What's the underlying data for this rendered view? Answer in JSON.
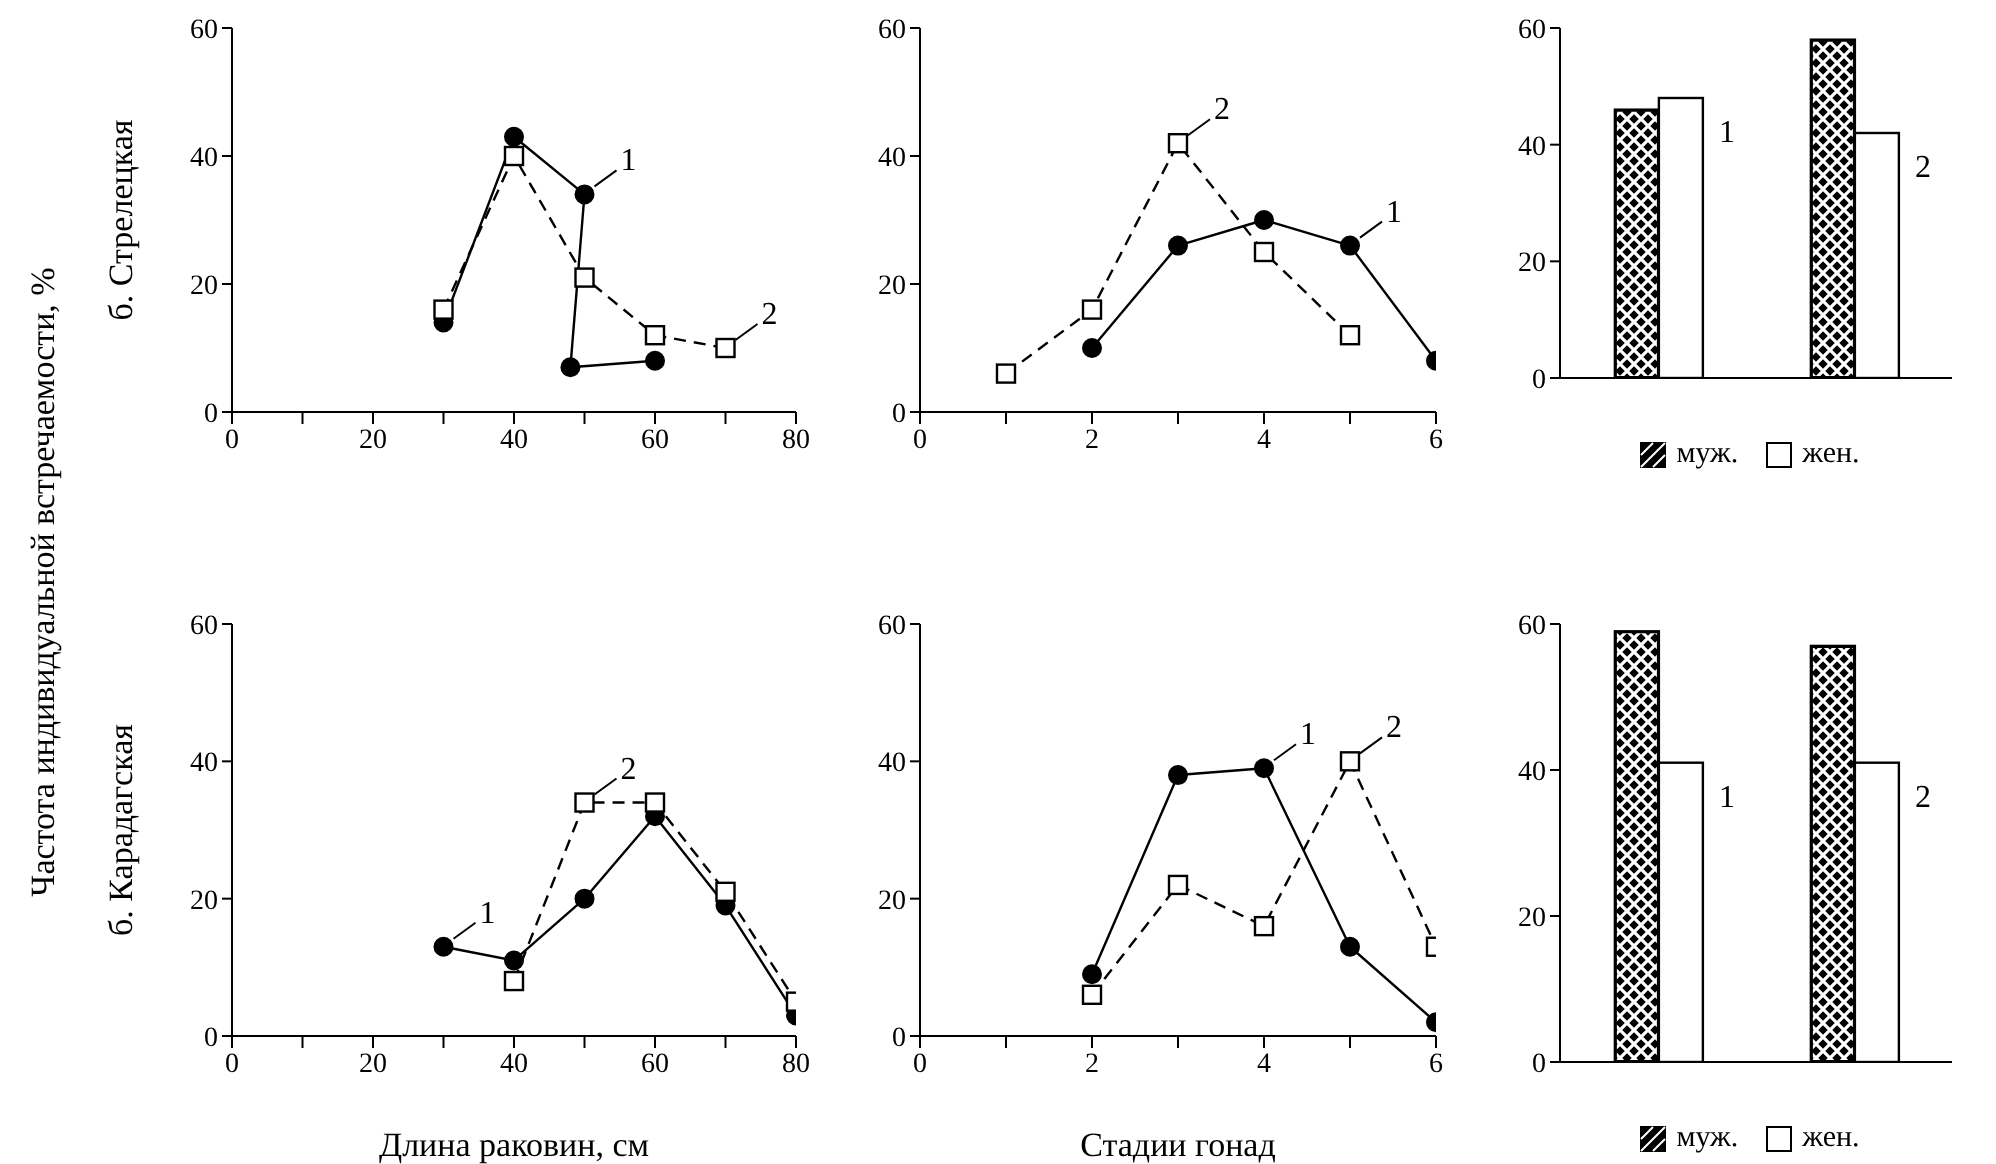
{
  "chart_data": [
    {
      "type": "line",
      "ylabel": "б. Стрелецкая",
      "annotations": [
        "Частота индивидуальной встречаемости, %",
        {
          "text": "1",
          "x": 50,
          "y": 34
        },
        {
          "text": "2",
          "x": 70,
          "y": 10
        }
      ],
      "xlim": [
        0,
        80
      ],
      "xticks": [
        0,
        {
          "value": 10,
          "label": null
        },
        20,
        {
          "value": 30,
          "label": null
        },
        40,
        {
          "value": 50,
          "label": null
        },
        60,
        {
          "value": 70,
          "label": null
        },
        80
      ],
      "ylim": [
        0,
        60
      ],
      "yticks": [
        0,
        20,
        40,
        60
      ],
      "series": [
        {
          "color": "#000000",
          "marker": "circle",
          "line_style": "solid",
          "x": [
            30,
            40,
            50,
            48,
            60
          ],
          "values": [
            14,
            43,
            34,
            7,
            8
          ]
        },
        {
          "color": "#000000",
          "marker": "square",
          "line_style": "dashed",
          "x": [
            30,
            40,
            50,
            60,
            70
          ],
          "values": [
            16,
            40,
            21,
            12,
            10
          ]
        }
      ]
    },
    {
      "type": "line",
      "annotations": [
        {
          "text": "1",
          "x": 5,
          "y": 26
        },
        {
          "text": "2",
          "x": 3,
          "y": 42
        }
      ],
      "xlim": [
        0,
        6
      ],
      "xticks": [
        0,
        {
          "value": 1,
          "label": null
        },
        2,
        {
          "value": 3,
          "label": null
        },
        4,
        {
          "value": 5,
          "label": null
        },
        6
      ],
      "ylim": [
        0,
        60
      ],
      "yticks": [
        0,
        20,
        40,
        60
      ],
      "series": [
        {
          "color": "#000000",
          "marker": "circle",
          "line_style": "solid",
          "x": [
            2,
            3,
            4,
            5,
            6
          ],
          "values": [
            10,
            26,
            30,
            26,
            8
          ]
        },
        {
          "color": "#000000",
          "marker": "square",
          "line_style": "dashed",
          "x": [
            1,
            2,
            3,
            4,
            5
          ],
          "values": [
            6,
            16,
            42,
            25,
            12
          ]
        }
      ]
    },
    {
      "type": "bar",
      "categories": [
        "1",
        "2"
      ],
      "ylim": [
        0,
        60
      ],
      "yticks": [
        0,
        20,
        40,
        60
      ],
      "tick_labels": "y",
      "legend": "bottom",
      "series": [
        {
          "name": "муж.",
          "color": "#000000",
          "values": [
            46,
            58
          ]
        },
        {
          "name": "жен.",
          "color": "#ffffff",
          "values": [
            48,
            42
          ]
        }
      ]
    },
    {
      "type": "line",
      "ylabel": "б. Карадагская",
      "xlabel": "Длина раковин, см",
      "annotations": [
        {
          "text": "1",
          "x": 30,
          "y": 13
        },
        {
          "text": "2",
          "x": 50,
          "y": 34
        }
      ],
      "xlim": [
        0,
        80
      ],
      "xticks": [
        0,
        {
          "value": 10,
          "label": null
        },
        20,
        {
          "value": 30,
          "label": null
        },
        40,
        {
          "value": 50,
          "label": null
        },
        60,
        {
          "value": 70,
          "label": null
        },
        80
      ],
      "ylim": [
        0,
        60
      ],
      "yticks": [
        0,
        20,
        40,
        60
      ],
      "series": [
        {
          "color": "#000000",
          "marker": "circle",
          "line_style": "solid",
          "x": [
            30,
            40,
            50,
            60,
            70,
            80
          ],
          "values": [
            13,
            11,
            20,
            32,
            19,
            3
          ]
        },
        {
          "color": "#000000",
          "marker": "square",
          "line_style": "dashed",
          "x": [
            40,
            50,
            60,
            70,
            80
          ],
          "values": [
            8,
            34,
            34,
            21,
            5
          ]
        }
      ]
    },
    {
      "type": "line",
      "xlabel": "Стадии гонад",
      "annotations": [
        {
          "text": "1",
          "x": 4,
          "y": 39
        },
        {
          "text": "2",
          "x": 5,
          "y": 40
        }
      ],
      "xlim": [
        0,
        6
      ],
      "xticks": [
        0,
        {
          "value": 1,
          "label": null
        },
        2,
        {
          "value": 3,
          "label": null
        },
        4,
        {
          "value": 5,
          "label": null
        },
        6
      ],
      "ylim": [
        0,
        60
      ],
      "yticks": [
        0,
        20,
        40,
        60
      ],
      "series": [
        {
          "color": "#000000",
          "marker": "circle",
          "line_style": "solid",
          "x": [
            2,
            3,
            4,
            5,
            6
          ],
          "values": [
            9,
            38,
            39,
            13,
            2
          ]
        },
        {
          "color": "#000000",
          "marker": "square",
          "line_style": "dashed",
          "x": [
            2,
            3,
            4,
            5,
            6
          ],
          "values": [
            6,
            22,
            16,
            40,
            13
          ]
        }
      ]
    },
    {
      "type": "bar",
      "categories": [
        "1",
        "2"
      ],
      "ylim": [
        0,
        60
      ],
      "yticks": [
        0,
        20,
        40,
        60
      ],
      "tick_labels": "y",
      "legend": "bottom",
      "series": [
        {
          "name": "муж.",
          "color": "#000000",
          "values": [
            59,
            57
          ]
        },
        {
          "name": "жен.",
          "color": "#ffffff",
          "values": [
            41,
            41
          ]
        }
      ]
    }
  ]
}
